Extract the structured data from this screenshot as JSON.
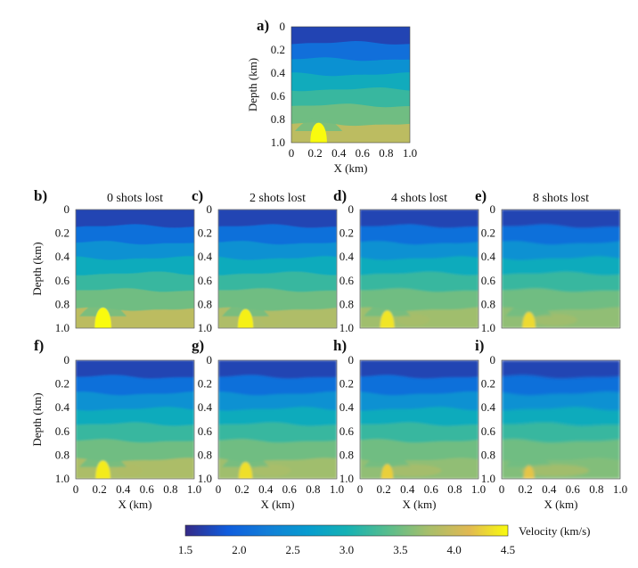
{
  "chart_data": {
    "type": "heatmap",
    "description_panels": [
      {
        "letter": "a)",
        "title": "",
        "variant": "true",
        "ylabel": "Depth (km)",
        "xlabel": "X (km)"
      },
      {
        "letter": "b)",
        "title": "0 shots lost",
        "variant": "inv1",
        "ylabel": "Depth (km)",
        "xlabel": ""
      },
      {
        "letter": "c)",
        "title": "2 shots lost",
        "variant": "inv2",
        "ylabel": "",
        "xlabel": ""
      },
      {
        "letter": "d)",
        "title": "4 shots lost",
        "variant": "inv3",
        "ylabel": "",
        "xlabel": ""
      },
      {
        "letter": "e)",
        "title": "8 shots lost",
        "variant": "inv4",
        "ylabel": "",
        "xlabel": ""
      },
      {
        "letter": "f)",
        "title": "",
        "variant": "inv1b",
        "ylabel": "Depth (km)",
        "xlabel": "X (km)"
      },
      {
        "letter": "g)",
        "title": "",
        "variant": "inv2b",
        "ylabel": "",
        "xlabel": "X (km)"
      },
      {
        "letter": "h)",
        "title": "",
        "variant": "inv3b",
        "ylabel": "",
        "xlabel": "X (km)"
      },
      {
        "letter": "i)",
        "title": "",
        "variant": "inv4b",
        "ylabel": "",
        "xlabel": "X (km)"
      }
    ],
    "x_ticks": [
      "0",
      "0.2",
      "0.4",
      "0.6",
      "0.8",
      "1.0"
    ],
    "y_ticks": [
      "0",
      "0.2",
      "0.4",
      "0.6",
      "0.8",
      "1.0"
    ],
    "xlim": [
      0,
      1.0
    ],
    "ylim": [
      0,
      1.0
    ],
    "layers": [
      {
        "depth_top": 0.0,
        "velocity": 1.7
      },
      {
        "depth_top": 0.14,
        "velocity": 2.1
      },
      {
        "depth_top": 0.28,
        "velocity": 2.5
      },
      {
        "depth_top": 0.41,
        "velocity": 2.9
      },
      {
        "depth_top": 0.54,
        "velocity": 3.2
      },
      {
        "depth_top": 0.68,
        "velocity": 3.5
      },
      {
        "depth_top": 0.84,
        "velocity": 3.9
      }
    ],
    "anomaly": {
      "x_center": 0.23,
      "depth_top": 0.77,
      "velocity": 4.5
    },
    "colorbar": {
      "label": "Velocity (km/s)",
      "min": 1.5,
      "max": 4.5,
      "ticks": [
        "1.5",
        "2.0",
        "2.5",
        "3.0",
        "3.5",
        "4.0",
        "4.5"
      ]
    }
  }
}
